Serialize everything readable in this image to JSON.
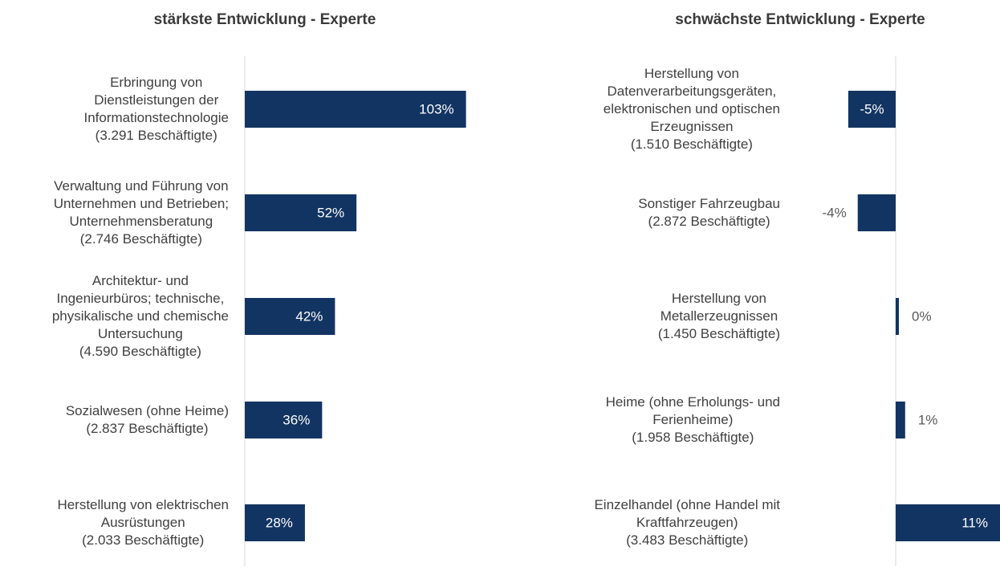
{
  "chart_data": [
    {
      "type": "bar",
      "orientation": "horizontal",
      "title": "stärkste Entwicklung - Experte",
      "categories": [
        "Erbringung von\nDienstleistungen der\nInformationstechnologie\n(3.291 Beschäftigte)",
        "Verwaltung und Führung von\nUnternehmen und Betrieben;\nUnternehmensberatung\n(2.746 Beschäftigte)",
        "Architektur- und\nIngenieurbüros; technische,\nphysikalische und chemische\nUntersuchung\n(4.590 Beschäftigte)",
        "Sozialwesen (ohne Heime)\n(2.837 Beschäftigte)",
        "Herstellung von elektrischen\nAusrüstungen\n(2.033 Beschäftigte)"
      ],
      "values": [
        103,
        52,
        42,
        36,
        28
      ],
      "value_labels": [
        "103%",
        "52%",
        "42%",
        "36%",
        "28%"
      ],
      "color": "#123462",
      "xlim": [
        0,
        105
      ]
    },
    {
      "type": "bar",
      "orientation": "horizontal",
      "title": "schwächste Entwicklung - Experte",
      "categories": [
        "Herstellung von\nDatenverarbeitungsgeräten,\nelektronischen und optischen\nErzeugnissen\n(1.510 Beschäftigte)",
        "Sonstiger Fahrzeugbau\n(2.872 Beschäftigte)",
        "Herstellung von\nMetallerzeugnissen\n(1.450 Beschäftigte)",
        "Heime (ohne Erholungs- und\nFerienheime)\n(1.958 Beschäftigte)",
        "Einzelhandel (ohne Handel mit\nKraftfahrzeugen)\n(3.483 Beschäftigte)"
      ],
      "values": [
        -5,
        -4,
        0,
        1,
        11
      ],
      "value_labels": [
        "-5%",
        "-4%",
        "0%",
        "1%",
        "11%"
      ],
      "color": "#123462",
      "xlim": [
        -5.5,
        11
      ]
    }
  ]
}
